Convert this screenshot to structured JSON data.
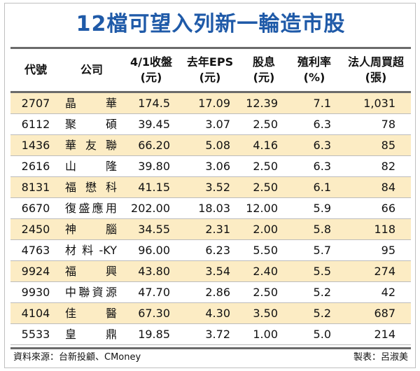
{
  "title": "12檔可望入列新一輪造市股",
  "headers": [
    "代號",
    "公司",
    "4/1收盤\n(元)",
    "去年EPS\n(元)",
    "股息\n(元)",
    "殖利率\n(%)",
    "法人周買超\n(張)"
  ],
  "rows": [
    [
      "2707",
      "晶華",
      "174.5",
      "17.09",
      "12.39",
      "7.1",
      "1,031"
    ],
    [
      "6112",
      "聚碩",
      "39.45",
      "3.07",
      "2.50",
      "6.3",
      "78"
    ],
    [
      "1436",
      "華友聯",
      "66.20",
      "5.08",
      "4.16",
      "6.3",
      "85"
    ],
    [
      "2616",
      "山隆",
      "39.80",
      "3.06",
      "2.50",
      "6.3",
      "82"
    ],
    [
      "8131",
      "福懋科",
      "41.15",
      "3.52",
      "2.50",
      "6.1",
      "84"
    ],
    [
      "6670",
      "復盛應用",
      "202.00",
      "18.03",
      "12.00",
      "5.9",
      "66"
    ],
    [
      "2450",
      "神腦",
      "34.55",
      "2.31",
      "2.00",
      "5.8",
      "118"
    ],
    [
      "4763",
      "材料-KY",
      "96.00",
      "6.23",
      "5.50",
      "5.7",
      "95"
    ],
    [
      "9924",
      "福興",
      "43.80",
      "3.54",
      "2.40",
      "5.5",
      "274"
    ],
    [
      "9930",
      "中聯資源",
      "47.70",
      "2.86",
      "2.50",
      "5.2",
      "42"
    ],
    [
      "4104",
      "佳醫",
      "67.30",
      "4.30",
      "3.50",
      "5.2",
      "687"
    ],
    [
      "5533",
      "皇鼎",
      "19.85",
      "3.72",
      "1.00",
      "5.0",
      "214"
    ]
  ],
  "footer": {
    "source": "資料來源：台新投顧、CMoney",
    "credit": "製表：呂淑美"
  },
  "colors": {
    "title": "#1f5aa8",
    "stripe": "#fcecc4",
    "rule": "#6b6b6b"
  }
}
